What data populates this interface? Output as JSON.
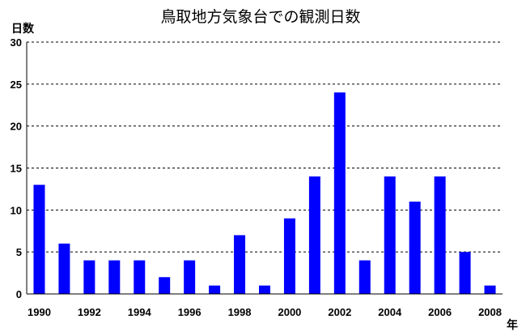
{
  "chart_data": {
    "type": "bar",
    "title": "鳥取地方気象台での観測日数",
    "xlabel": "年",
    "ylabel": "日数",
    "ylim": [
      0,
      30
    ],
    "yticks": [
      0,
      5,
      10,
      15,
      20,
      25,
      30
    ],
    "grid": true,
    "legend": "none",
    "bar_color": "#0000ff",
    "categories": [
      "1990",
      "1991",
      "1992",
      "1993",
      "1994",
      "1995",
      "1996",
      "1997",
      "1998",
      "1999",
      "2000",
      "2001",
      "2002",
      "2003",
      "2004",
      "2005",
      "2006",
      "2007",
      "2008"
    ],
    "xtick_labels": [
      "1990",
      "1992",
      "1994",
      "1996",
      "1998",
      "2000",
      "2002",
      "2004",
      "2006",
      "2008"
    ],
    "values": [
      13,
      6,
      4,
      4,
      4,
      2,
      4,
      1,
      7,
      1,
      9,
      14,
      24,
      4,
      14,
      11,
      14,
      5,
      1
    ]
  }
}
